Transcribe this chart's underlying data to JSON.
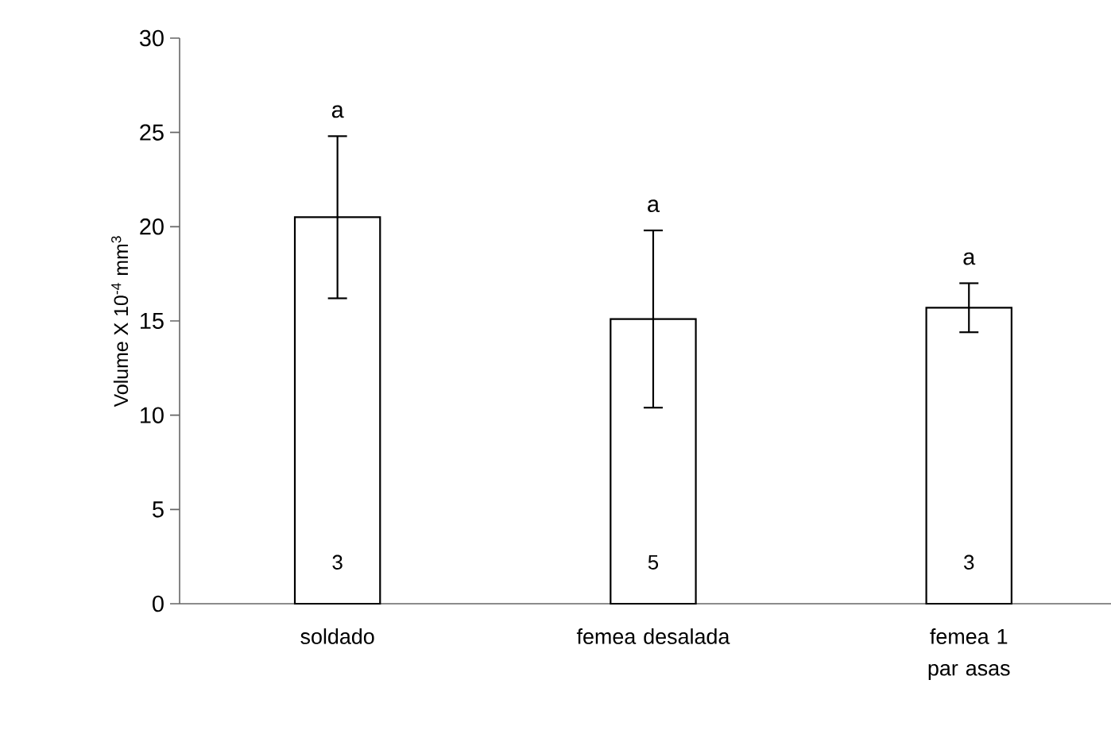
{
  "chart_data": {
    "type": "bar",
    "ylabel": "Volume X 10$^{-4}$ mm$^{3}$",
    "categories": [
      "soldado",
      "femea desalada",
      "femea 1 par asas"
    ],
    "values": [
      20.5,
      15.1,
      15.7
    ],
    "errors": [
      4.3,
      4.7,
      1.3
    ],
    "color": "#ffffff",
    "ylim": [
      0,
      30
    ],
    "yticks": [
      0,
      5,
      10,
      15,
      20,
      25,
      30
    ],
    "grid": false,
    "annotations": [
      "a",
      "a",
      "a",
      "3",
      "5",
      "3"
    ]
  }
}
